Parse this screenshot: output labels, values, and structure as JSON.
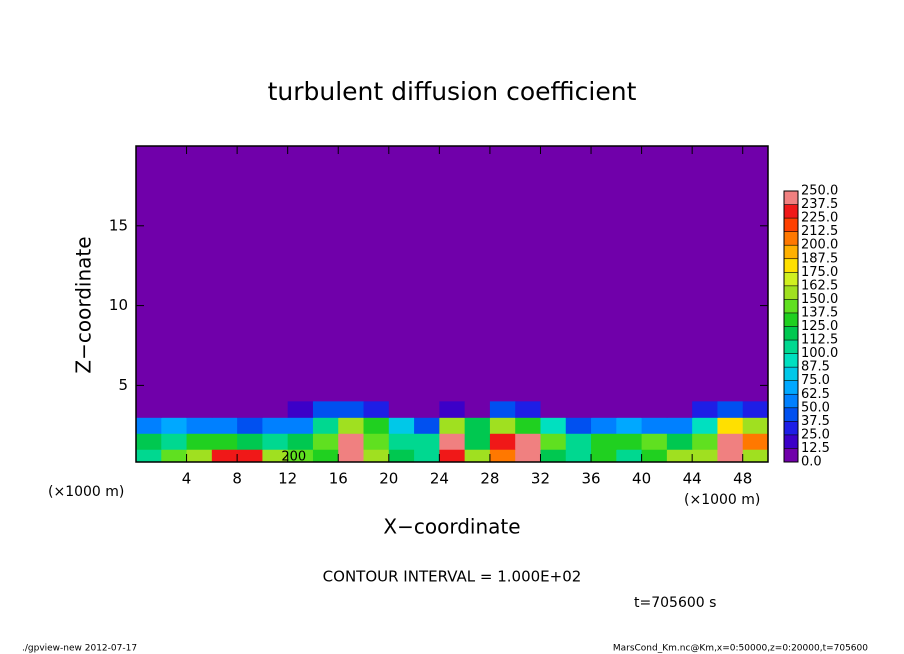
{
  "chart_data": {
    "type": "contour",
    "title": "turbulent diffusion coefficient",
    "xlabel": "X−coordinate",
    "ylabel": "Z−coordinate",
    "x_unit_left": "(×1000 m)",
    "x_unit_right": "(×1000 m)",
    "contour_interval": "CONTOUR INTERVAL = 1.000E+02",
    "contour_label": "200",
    "time_label": "t=705600 s",
    "footer_left": "./gpview-new  2012-07-17",
    "footer_right": "MarsCond_Km.nc@Km,x=0:50000,z=0:20000,t=705600",
    "xlim": [
      0,
      50
    ],
    "ylim": [
      0.2,
      20
    ],
    "xticks": [
      4,
      8,
      12,
      16,
      20,
      24,
      28,
      32,
      36,
      40,
      44,
      48
    ],
    "yticks": [
      5,
      10,
      15
    ],
    "x_edges": [
      0,
      2,
      4,
      6,
      8,
      10,
      12,
      14,
      16,
      18,
      20,
      22,
      24,
      26,
      28,
      30,
      32,
      34,
      36,
      38,
      40,
      42,
      44,
      46,
      48,
      50
    ],
    "z_edges": [
      0.2,
      1,
      2,
      3,
      4
    ],
    "values": [
      [
        110,
        140,
        160,
        230,
        230,
        160,
        140,
        130,
        240,
        150,
        120,
        110,
        230,
        150,
        200,
        250,
        120,
        100,
        125,
        110,
        130,
        150,
        160,
        240,
        150
      ],
      [
        120,
        110,
        125,
        130,
        120,
        110,
        120,
        140,
        240,
        140,
        110,
        100,
        240,
        120,
        230,
        250,
        140,
        110,
        125,
        130,
        140,
        120,
        140,
        240,
        200
      ],
      [
        60,
        70,
        50,
        60,
        40,
        50,
        50,
        110,
        150,
        125,
        80,
        40,
        150,
        120,
        150,
        130,
        90,
        40,
        50,
        70,
        60,
        50,
        90,
        180,
        150
      ],
      [
        12,
        0,
        0,
        0,
        0,
        0,
        20,
        40,
        45,
        30,
        0,
        0,
        20,
        0,
        40,
        25,
        0,
        0,
        0,
        0,
        0,
        0,
        25,
        40,
        30
      ]
    ],
    "levels": [
      {
        "value": 0,
        "label": "0.0"
      },
      {
        "value": 12.5,
        "label": "12.5"
      },
      {
        "value": 25,
        "label": "25.0"
      },
      {
        "value": 37.5,
        "label": "37.5"
      },
      {
        "value": 50,
        "label": "50.0"
      },
      {
        "value": 62.5,
        "label": "62.5"
      },
      {
        "value": 75,
        "label": "75.0"
      },
      {
        "value": 87.5,
        "label": "87.5"
      },
      {
        "value": 100,
        "label": "100.0"
      },
      {
        "value": 112.5,
        "label": "112.5"
      },
      {
        "value": 125,
        "label": "125.0"
      },
      {
        "value": 137.5,
        "label": "137.5"
      },
      {
        "value": 150,
        "label": "150.0"
      },
      {
        "value": 162.5,
        "label": "162.5"
      },
      {
        "value": 175,
        "label": "175.0"
      },
      {
        "value": 187.5,
        "label": "187.5"
      },
      {
        "value": 200,
        "label": "200.0"
      },
      {
        "value": 212.5,
        "label": "212.5"
      },
      {
        "value": 225,
        "label": "225.0"
      },
      {
        "value": 237.5,
        "label": "237.5"
      },
      {
        "value": 250,
        "label": "250.0"
      }
    ],
    "colors": [
      "#7000aa",
      "#3c00c8",
      "#1e1ee6",
      "#0050f0",
      "#0080ff",
      "#00a8ff",
      "#00c8e8",
      "#00e0c0",
      "#00d890",
      "#00c850",
      "#20d020",
      "#60e020",
      "#a0e020",
      "#d0f020",
      "#ffe000",
      "#ffb000",
      "#ff7800",
      "#ff4000",
      "#f01818",
      "#f08080"
    ]
  }
}
